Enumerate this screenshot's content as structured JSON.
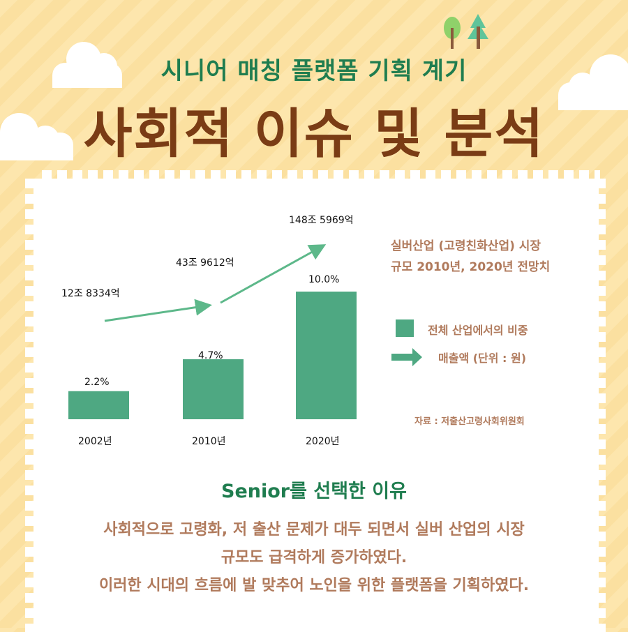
{
  "header": {
    "subtitle": "시니어 매칭 플랫폼 기획 계기",
    "title": "사회적 이슈 및 분석"
  },
  "chart_data": {
    "type": "bar",
    "categories": [
      "2002년",
      "2010년",
      "2020년"
    ],
    "series": [
      {
        "name": "전체 산업에서의 비중",
        "values": [
          2.2,
          4.7,
          10.0
        ],
        "value_labels": [
          "2.2%",
          "4.7%",
          "10.0%"
        ],
        "color": "#4ea882"
      },
      {
        "name": "매출액 (단위 : 원)",
        "type": "arrow",
        "value_labels": [
          "12조 8334억",
          "43조 9612억",
          "148조 5969억"
        ],
        "color": "#5db88a"
      }
    ],
    "title": "실버산업 (고령친화산업) 시장 규모 2010년, 2020년 전망치",
    "title_lines": [
      "실버산업 (고령친화산업) 시장",
      "규모 2010년, 2020년 전망치"
    ],
    "source": "자료 : 저출산고령사회위원회",
    "ylim": [
      0,
      10
    ],
    "legend": "right",
    "grid": false
  },
  "section": {
    "heading": "Senior를 선택한 이유",
    "lines": [
      "사회적으로 고령화, 저 출산 문제가 대두 되면서 실버 산업의 시장",
      "규모도 급격하게 증가하였다.",
      "이러한 시대의 흐름에 발 맞추어 노인을 위한 플랫폼을 기획하였다."
    ]
  },
  "colors": {
    "accent_green": "#1f7d4f",
    "title_brown": "#7a3c15",
    "text_brown": "#b07a5c",
    "bar": "#4ea882"
  }
}
